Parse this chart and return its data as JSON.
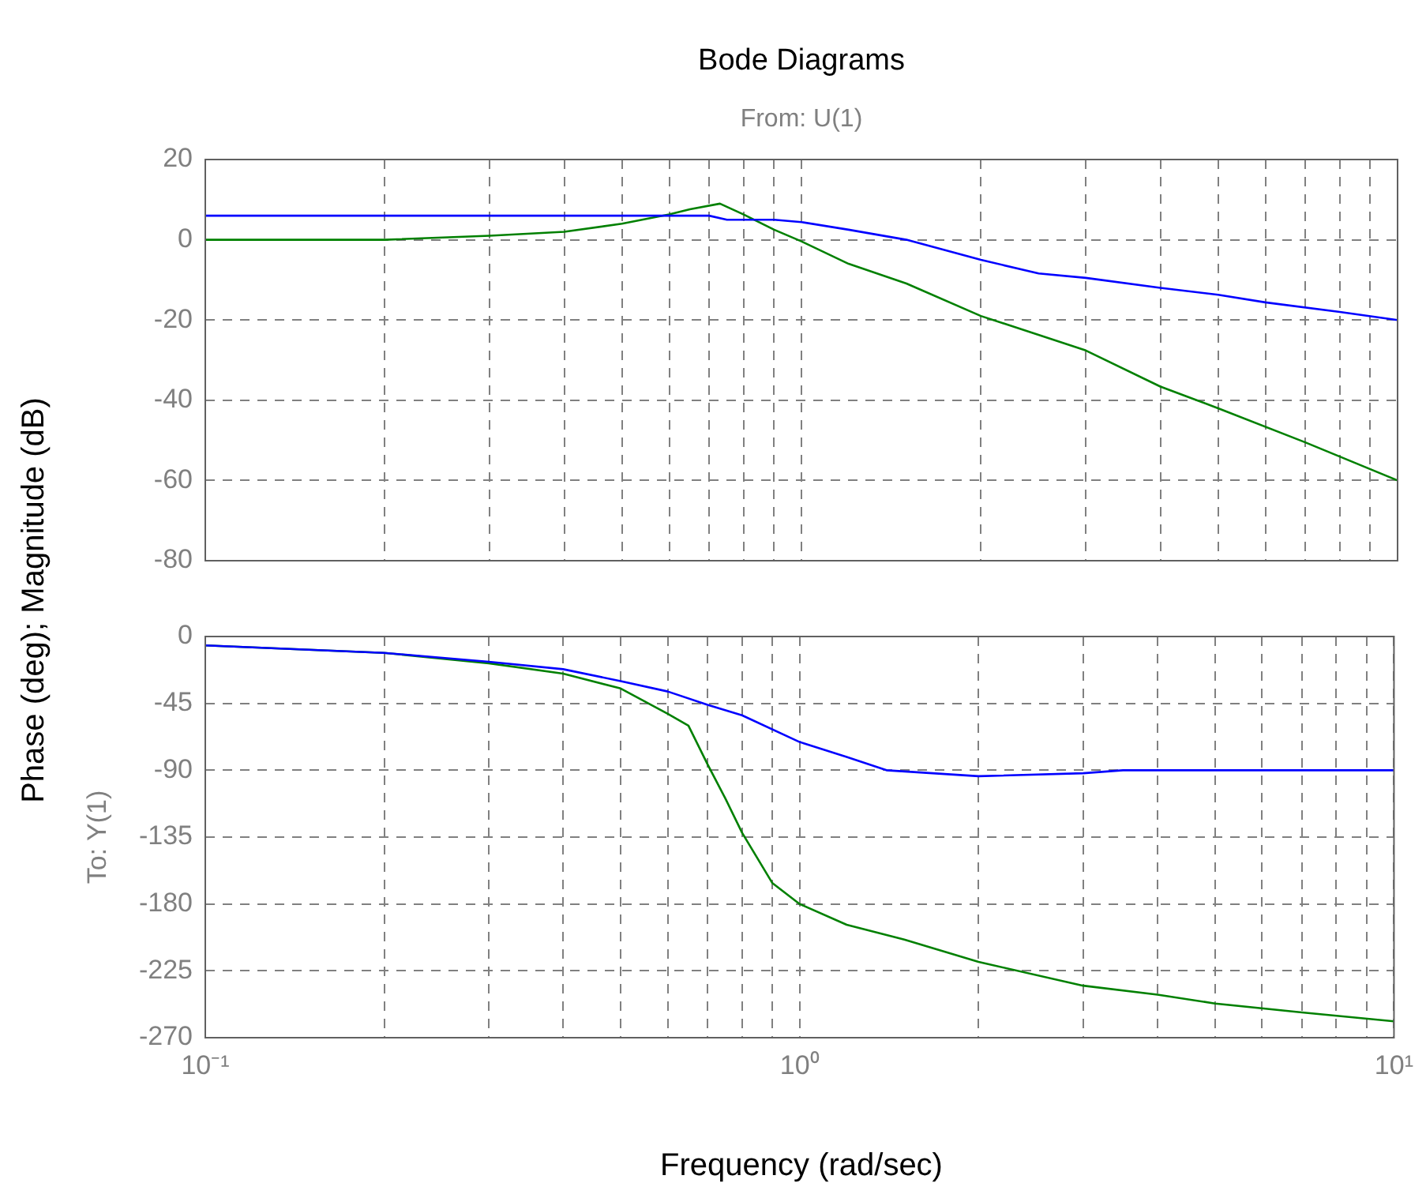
{
  "chart_data": [
    {
      "type": "line",
      "title": "Bode Diagrams",
      "subtitle": "From: U(1)",
      "ylabel": "Phase (deg); Magnitude (dB)",
      "log": "x",
      "grid": true,
      "legend": false,
      "tick_labels": "y",
      "xlim": [
        0.1,
        10
      ],
      "xticks": [
        {
          "value": 0.1,
          "label": null
        },
        {
          "value": 0.2,
          "label": null
        },
        {
          "value": 0.3,
          "label": null
        },
        {
          "value": 0.4,
          "label": null
        },
        {
          "value": 0.5,
          "label": null
        },
        {
          "value": 0.6,
          "label": null
        },
        {
          "value": 0.7,
          "label": null
        },
        {
          "value": 0.8,
          "label": null
        },
        {
          "value": 0.9,
          "label": null
        },
        {
          "value": 1,
          "label": null
        },
        {
          "value": 2,
          "label": null
        },
        {
          "value": 3,
          "label": null
        },
        {
          "value": 4,
          "label": null
        },
        {
          "value": 5,
          "label": null
        },
        {
          "value": 6,
          "label": null
        },
        {
          "value": 7,
          "label": null
        },
        {
          "value": 8,
          "label": null
        },
        {
          "value": 9,
          "label": null
        },
        {
          "value": 10,
          "label": null
        }
      ],
      "ylim": [
        -80,
        20
      ],
      "yticks": [
        -80,
        -60,
        -40,
        -20,
        0,
        20
      ],
      "series": [
        {
          "color": "#0000ff",
          "x": [
            0.1,
            0.7,
            0.75,
            0.9,
            1,
            1.2,
            1.5,
            2,
            2.5,
            3,
            4,
            5,
            6,
            8,
            10
          ],
          "values": [
            6,
            6,
            5,
            5,
            4.4,
            2.5,
            0,
            -5,
            -8.4,
            -9.5,
            -12,
            -13.7,
            -15.6,
            -18,
            -20
          ]
        },
        {
          "color": "#008000",
          "x": [
            0.1,
            0.2,
            0.3,
            0.4,
            0.5,
            0.6,
            0.65,
            0.73,
            0.8,
            0.9,
            1,
            1.2,
            1.5,
            2,
            3,
            4,
            5,
            7,
            10
          ],
          "values": [
            0,
            0,
            1,
            2,
            4,
            6.3,
            7.6,
            9,
            6.3,
            2.5,
            -0.4,
            -6,
            -10.9,
            -19,
            -27.6,
            -36.6,
            -42,
            -50.5,
            -60
          ]
        }
      ]
    },
    {
      "type": "line",
      "xlabel": "Frequency (rad/sec)",
      "ylabel": "To: Y(1)",
      "log": "x",
      "grid": true,
      "legend": false,
      "xlim": [
        0.1,
        10
      ],
      "xticks": [
        {
          "value": 0.1,
          "label": "10⁻¹"
        },
        {
          "value": 0.2,
          "label": null
        },
        {
          "value": 0.3,
          "label": null
        },
        {
          "value": 0.4,
          "label": null
        },
        {
          "value": 0.5,
          "label": null
        },
        {
          "value": 0.6,
          "label": null
        },
        {
          "value": 0.7,
          "label": null
        },
        {
          "value": 0.8,
          "label": null
        },
        {
          "value": 0.9,
          "label": null
        },
        {
          "value": 1,
          "label": "10⁰"
        },
        {
          "value": 2,
          "label": null
        },
        {
          "value": 3,
          "label": null
        },
        {
          "value": 4,
          "label": null
        },
        {
          "value": 5,
          "label": null
        },
        {
          "value": 6,
          "label": null
        },
        {
          "value": 7,
          "label": null
        },
        {
          "value": 8,
          "label": null
        },
        {
          "value": 9,
          "label": null
        },
        {
          "value": 10,
          "label": "10¹"
        }
      ],
      "ylim": [
        -270,
        0
      ],
      "yticks": [
        -270,
        -225,
        -180,
        -135,
        -90,
        -45,
        0
      ],
      "series": [
        {
          "color": "#0000ff",
          "x": [
            0.1,
            0.2,
            0.3,
            0.4,
            0.5,
            0.6,
            0.7,
            0.8,
            1,
            1.2,
            1.4,
            2,
            3,
            3.5,
            10
          ],
          "values": [
            -6,
            -11,
            -17,
            -22,
            -30,
            -37,
            -46,
            -53,
            -71,
            -81,
            -90,
            -94,
            -92,
            -90,
            -90
          ]
        },
        {
          "color": "#008000",
          "x": [
            0.1,
            0.2,
            0.3,
            0.4,
            0.5,
            0.6,
            0.65,
            0.7,
            0.75,
            0.8,
            0.9,
            1,
            1.2,
            1.5,
            2,
            3,
            4,
            5,
            7,
            10
          ],
          "values": [
            -6,
            -11,
            -18,
            -25,
            -35,
            -52,
            -60,
            -86,
            -109,
            -132,
            -166,
            -180,
            -194,
            -204,
            -219,
            -235,
            -241,
            -247,
            -253,
            -259
          ]
        }
      ]
    }
  ]
}
